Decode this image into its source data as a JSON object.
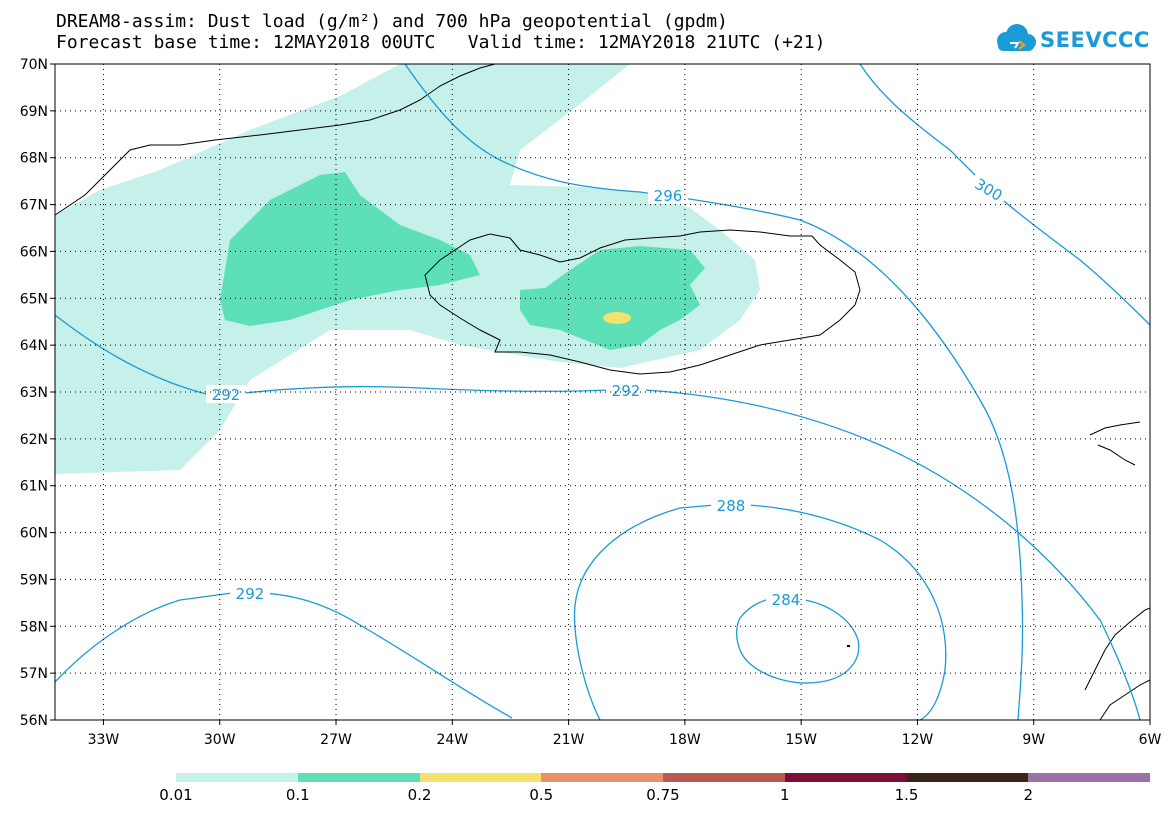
{
  "header": {
    "title_line1": "DREAM8-assim: Dust load (g/m²) and 700 hPa geopotential (gpdm)",
    "title_line2": "Forecast base time: 12MAY2018 00UTC   Valid time: 12MAY2018 21UTC (+21)"
  },
  "logo": {
    "text": "SEEVCCC",
    "color": "#1a9ad7",
    "icon": "cloud-icon"
  },
  "map": {
    "lat_labels": [
      "70N",
      "69N",
      "68N",
      "67N",
      "66N",
      "65N",
      "64N",
      "63N",
      "62N",
      "61N",
      "60N",
      "59N",
      "58N",
      "57N",
      "56N"
    ],
    "lon_labels": [
      "33W",
      "30W",
      "27W",
      "24W",
      "21W",
      "18W",
      "15W",
      "12W",
      "9W",
      "6W"
    ],
    "contour_labels": {
      "c296": "296",
      "c300": "300",
      "c292_west": "292",
      "c292_east": "292",
      "c288": "288",
      "c284": "284",
      "c292_south": "292"
    },
    "contour_color": "#1a9ad7",
    "coast_color": "#000000"
  },
  "legend": {
    "colors": [
      "#c6f0ea",
      "#5de0b8",
      "#f4e26e",
      "#e8906a",
      "#b85a50",
      "#7c0f36",
      "#3a2418",
      "#9b72a8"
    ],
    "ticks": [
      "0.01",
      "0.1",
      "0.2",
      "0.5",
      "0.75",
      "1",
      "1.5",
      "2"
    ]
  }
}
